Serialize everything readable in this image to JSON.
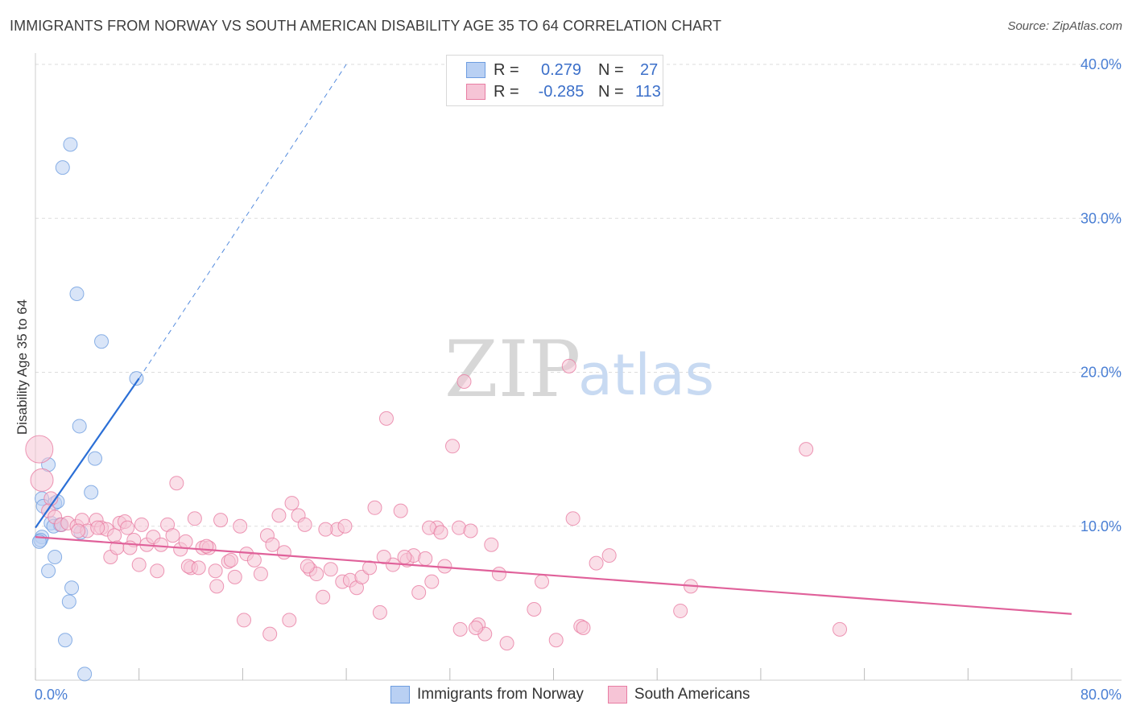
{
  "title": "IMMIGRANTS FROM NORWAY VS SOUTH AMERICAN DISABILITY AGE 35 TO 64 CORRELATION CHART",
  "source": "Source: ZipAtlas.com",
  "watermark": {
    "zip": "ZIP",
    "atlas": "atlas"
  },
  "legend": {
    "norway": {
      "r_label": "R =",
      "r": "0.279",
      "n_label": "N =",
      "n": "27"
    },
    "south": {
      "r_label": "R =",
      "r": "-0.285",
      "n_label": "N =",
      "n": "113"
    }
  },
  "bottom_legend": {
    "norway": "Immigrants from Norway",
    "south": "South Americans"
  },
  "colors": {
    "norway": "#6e9de0",
    "norway_fill": "#b9d0f3",
    "south": "#e87da3",
    "south_fill": "#f6c4d6",
    "norway_line": "#2b6fd6",
    "south_line": "#e0619a"
  },
  "chart_data": {
    "type": "scatter",
    "title": "IMMIGRANTS FROM NORWAY VS SOUTH AMERICAN DISABILITY AGE 35 TO 64 CORRELATION CHART",
    "xlabel": "",
    "ylabel": "Disability Age 35 to 64",
    "xlim": [
      0,
      80
    ],
    "ylim": [
      0,
      40
    ],
    "x_tick_labels": [
      "0.0%",
      "80.0%"
    ],
    "y_ticks": [
      10,
      20,
      30,
      40
    ],
    "y_tick_labels": [
      "10.0%",
      "20.0%",
      "30.0%",
      "40.0%"
    ],
    "grid": true,
    "series": [
      {
        "name": "Immigrants from Norway",
        "r": 0.279,
        "n": 27,
        "points": [
          [
            2.7,
            34.8
          ],
          [
            2.1,
            33.3
          ],
          [
            3.2,
            25.1
          ],
          [
            5.1,
            22.0
          ],
          [
            7.8,
            19.6
          ],
          [
            3.4,
            16.5
          ],
          [
            4.6,
            14.4
          ],
          [
            1.0,
            14.0
          ],
          [
            4.3,
            12.2
          ],
          [
            0.5,
            11.8
          ],
          [
            1.5,
            11.5
          ],
          [
            1.7,
            11.6
          ],
          [
            0.6,
            11.3
          ],
          [
            1.2,
            10.2
          ],
          [
            1.9,
            10.1
          ],
          [
            1.4,
            10.0
          ],
          [
            3.5,
            9.6
          ],
          [
            0.5,
            9.3
          ],
          [
            0.4,
            9.1
          ],
          [
            0.3,
            9.0
          ],
          [
            1.5,
            8.0
          ],
          [
            1.0,
            7.1
          ],
          [
            2.8,
            6.0
          ],
          [
            2.6,
            5.1
          ],
          [
            2.3,
            2.6
          ],
          [
            3.8,
            0.4
          ],
          [
            2.0,
            10.1
          ]
        ],
        "trend": {
          "x": [
            0,
            8
          ],
          "y": [
            9.9,
            19.6
          ],
          "dashed_to": [
            24,
            40
          ]
        }
      },
      {
        "name": "South Americans",
        "r": -0.285,
        "n": 113,
        "points": [
          [
            0.3,
            15.0
          ],
          [
            0.5,
            13.0
          ],
          [
            1.2,
            11.8
          ],
          [
            1.0,
            11.0
          ],
          [
            1.5,
            10.6
          ],
          [
            2.0,
            10.1
          ],
          [
            2.5,
            10.2
          ],
          [
            3.2,
            10.0
          ],
          [
            3.6,
            10.4
          ],
          [
            4.0,
            9.7
          ],
          [
            4.7,
            10.4
          ],
          [
            5.1,
            9.9
          ],
          [
            5.5,
            9.8
          ],
          [
            6.1,
            9.4
          ],
          [
            6.5,
            10.2
          ],
          [
            6.9,
            10.3
          ],
          [
            7.1,
            9.9
          ],
          [
            7.6,
            9.1
          ],
          [
            8.2,
            10.1
          ],
          [
            8.6,
            8.8
          ],
          [
            9.1,
            9.3
          ],
          [
            9.7,
            8.8
          ],
          [
            10.2,
            10.1
          ],
          [
            10.6,
            9.4
          ],
          [
            11.2,
            8.5
          ],
          [
            11.6,
            9.0
          ],
          [
            12.0,
            7.3
          ],
          [
            12.3,
            10.5
          ],
          [
            12.9,
            8.6
          ],
          [
            13.4,
            8.6
          ],
          [
            13.9,
            7.1
          ],
          [
            14.3,
            10.4
          ],
          [
            14.9,
            7.7
          ],
          [
            15.4,
            6.7
          ],
          [
            15.8,
            10.0
          ],
          [
            16.3,
            8.2
          ],
          [
            16.9,
            7.8
          ],
          [
            17.4,
            6.9
          ],
          [
            17.9,
            9.4
          ],
          [
            18.3,
            8.8
          ],
          [
            18.8,
            10.7
          ],
          [
            19.2,
            8.3
          ],
          [
            19.8,
            11.5
          ],
          [
            20.3,
            10.7
          ],
          [
            20.8,
            10.1
          ],
          [
            21.2,
            7.2
          ],
          [
            21.7,
            6.9
          ],
          [
            22.2,
            5.4
          ],
          [
            22.8,
            7.2
          ],
          [
            23.3,
            9.8
          ],
          [
            23.7,
            6.4
          ],
          [
            24.3,
            6.5
          ],
          [
            24.8,
            6.0
          ],
          [
            25.2,
            6.7
          ],
          [
            25.8,
            7.3
          ],
          [
            26.2,
            11.2
          ],
          [
            26.6,
            4.4
          ],
          [
            27.1,
            17.0
          ],
          [
            27.6,
            7.5
          ],
          [
            28.2,
            11.0
          ],
          [
            28.7,
            7.8
          ],
          [
            29.2,
            8.1
          ],
          [
            29.6,
            5.7
          ],
          [
            30.1,
            7.9
          ],
          [
            30.6,
            6.4
          ],
          [
            31.0,
            9.9
          ],
          [
            31.6,
            7.4
          ],
          [
            32.2,
            15.2
          ],
          [
            32.7,
            9.9
          ],
          [
            33.1,
            19.4
          ],
          [
            33.6,
            9.7
          ],
          [
            34.2,
            3.6
          ],
          [
            34.7,
            3.0
          ],
          [
            35.2,
            8.8
          ],
          [
            35.8,
            6.9
          ],
          [
            36.4,
            2.4
          ],
          [
            3.3,
            9.7
          ],
          [
            4.8,
            9.9
          ],
          [
            5.8,
            8.0
          ],
          [
            6.3,
            8.6
          ],
          [
            7.3,
            8.6
          ],
          [
            8.0,
            7.5
          ],
          [
            9.4,
            7.1
          ],
          [
            10.9,
            12.8
          ],
          [
            11.8,
            7.4
          ],
          [
            12.6,
            7.3
          ],
          [
            13.2,
            8.7
          ],
          [
            14.0,
            6.1
          ],
          [
            15.1,
            7.8
          ],
          [
            16.1,
            3.9
          ],
          [
            18.1,
            3.0
          ],
          [
            19.6,
            3.9
          ],
          [
            21.0,
            7.4
          ],
          [
            22.4,
            9.8
          ],
          [
            23.9,
            10.0
          ],
          [
            26.9,
            8.0
          ],
          [
            28.5,
            8.0
          ],
          [
            30.4,
            9.9
          ],
          [
            31.3,
            9.6
          ],
          [
            32.8,
            3.3
          ],
          [
            34.0,
            3.4
          ],
          [
            38.5,
            4.6
          ],
          [
            39.1,
            6.4
          ],
          [
            40.2,
            2.6
          ],
          [
            41.2,
            20.4
          ],
          [
            41.5,
            10.5
          ],
          [
            42.1,
            3.5
          ],
          [
            42.3,
            3.4
          ],
          [
            43.3,
            7.6
          ],
          [
            44.3,
            8.1
          ],
          [
            49.8,
            4.5
          ],
          [
            50.6,
            6.1
          ],
          [
            59.5,
            15.0
          ],
          [
            62.1,
            3.3
          ]
        ],
        "trend": {
          "x": [
            0,
            80
          ],
          "y": [
            9.3,
            4.3
          ]
        }
      }
    ]
  }
}
